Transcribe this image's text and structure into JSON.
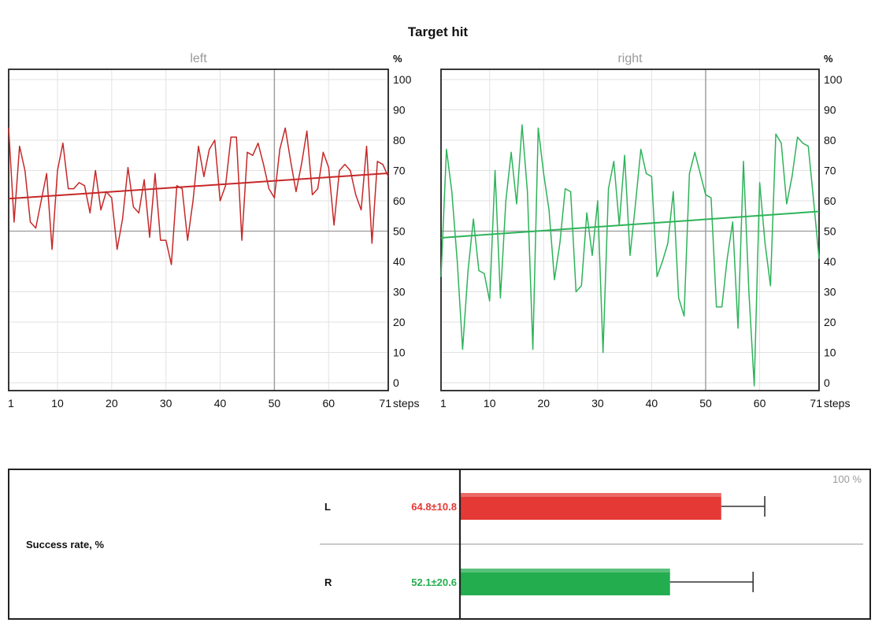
{
  "title": "Target hit",
  "colors": {
    "left": "#c62828",
    "right": "#2eb35a",
    "grid": "#e2e2e2",
    "axis": "#222222"
  },
  "chart_data": [
    {
      "type": "line",
      "subtitle": "left",
      "ylabel": "%",
      "xlabel": "steps",
      "ylim": [
        0,
        100
      ],
      "xlim": [
        1,
        71
      ],
      "xticks": [
        1,
        10,
        20,
        30,
        40,
        50,
        60,
        71
      ],
      "yticks": [
        0,
        10,
        20,
        30,
        40,
        50,
        60,
        70,
        80,
        90,
        100
      ],
      "reference_line_y": 50,
      "reference_line_x": 50,
      "grid": true,
      "color": "#c62828",
      "values": [
        84,
        53,
        78,
        70,
        53,
        51,
        60,
        69,
        44,
        70,
        79,
        64,
        64,
        66,
        65,
        56,
        70,
        57,
        63,
        61,
        44,
        54,
        71,
        58,
        56,
        67,
        48,
        69,
        47,
        47,
        39,
        65,
        64,
        47,
        60,
        78,
        68,
        77,
        80,
        60,
        65,
        81,
        81,
        47,
        76,
        75,
        79,
        72,
        64,
        61,
        77,
        84,
        73,
        63,
        72,
        83,
        62,
        64,
        76,
        71,
        52,
        70,
        72,
        70,
        62,
        57,
        78,
        46,
        73,
        72,
        68
      ],
      "trend": [
        60.7,
        69.1
      ]
    },
    {
      "type": "line",
      "subtitle": "right",
      "ylabel": "%",
      "xlabel": "steps",
      "ylim": [
        0,
        100
      ],
      "xlim": [
        1,
        71
      ],
      "xticks": [
        1,
        10,
        20,
        30,
        40,
        50,
        60,
        71
      ],
      "yticks": [
        0,
        10,
        20,
        30,
        40,
        50,
        60,
        70,
        80,
        90,
        100
      ],
      "reference_line_y": 50,
      "reference_line_x": 50,
      "grid": true,
      "color": "#2eb35a",
      "values": [
        35,
        77,
        63,
        40,
        11,
        37,
        54,
        37,
        36,
        27,
        70,
        28,
        60,
        76,
        59,
        85,
        63,
        11,
        84,
        69,
        57,
        34,
        46,
        64,
        63,
        30,
        32,
        56,
        42,
        60,
        10,
        64,
        73,
        52,
        75,
        42,
        59,
        77,
        69,
        68,
        35,
        40,
        46,
        63,
        28,
        22,
        69,
        76,
        69,
        62,
        61,
        25,
        25,
        41,
        53,
        18,
        73,
        30,
        -1,
        66,
        46,
        32,
        82,
        79,
        59,
        68,
        81,
        79,
        78,
        60,
        41
      ],
      "trend": [
        47.8,
        56.5
      ]
    },
    {
      "type": "bar",
      "label": "Success rate, %",
      "axis_max_label": "100 %",
      "xlim": [
        0,
        100
      ],
      "categories": [
        "L",
        "R"
      ],
      "values": [
        64.8,
        52.1
      ],
      "errors": [
        10.8,
        20.6
      ],
      "value_labels": [
        "64.8±10.8",
        "52.1±20.6"
      ],
      "colors": [
        "#e53935",
        "#23ad4f"
      ]
    }
  ]
}
